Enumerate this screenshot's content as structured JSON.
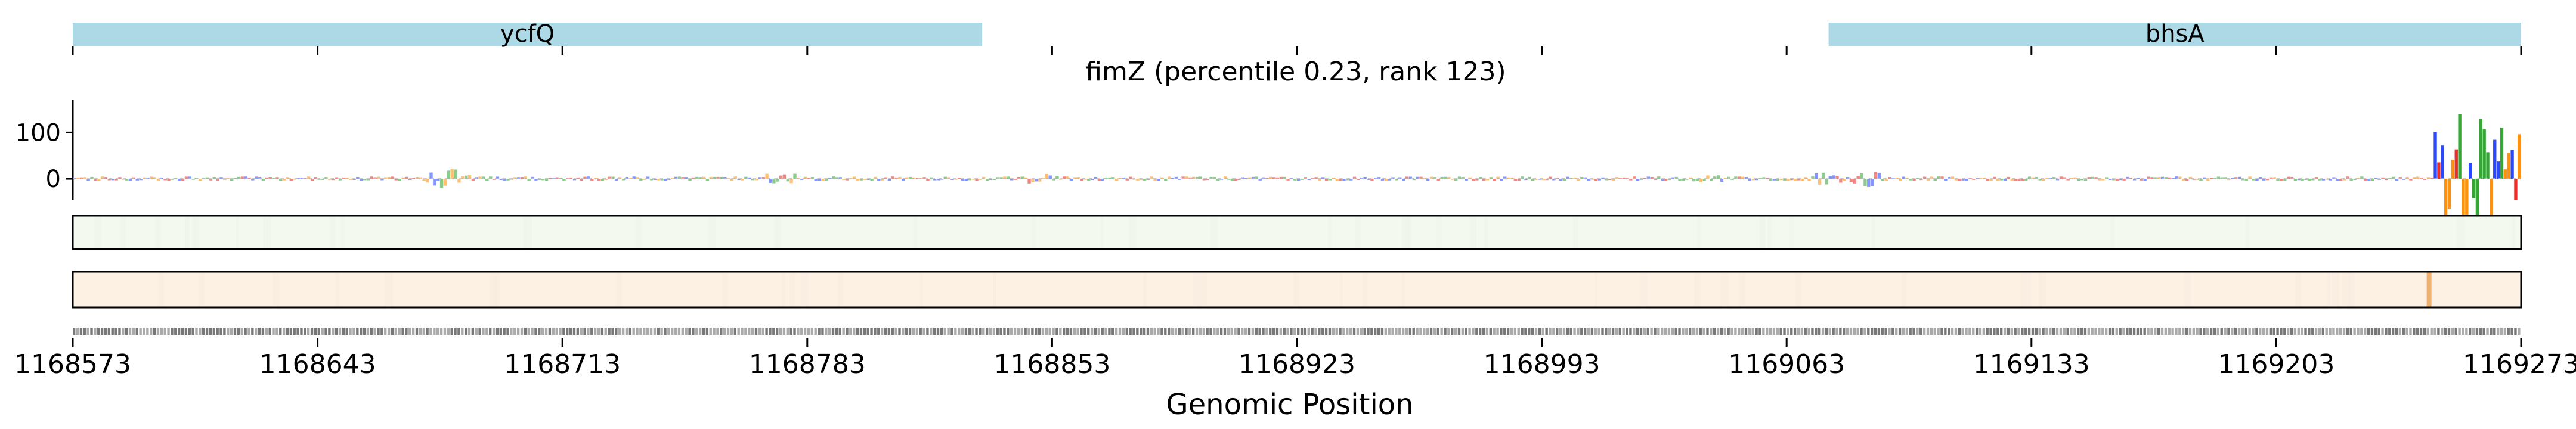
{
  "chart_data": {
    "type": "genome-track",
    "title": "fimZ (percentile 0.23, rank 123)",
    "xlabel": "Genomic Position",
    "xlim": [
      1168573,
      1169273
    ],
    "x_ticks": [
      1168573,
      1168643,
      1168713,
      1168783,
      1168853,
      1168923,
      1168993,
      1169063,
      1169133,
      1169203,
      1169273
    ],
    "genes": [
      {
        "name": "ycfQ",
        "start": 1168573,
        "end": 1168833,
        "color": "#add8e6"
      },
      {
        "name": "bhsA",
        "start": 1169075,
        "end": 1169273,
        "color": "#add8e6"
      }
    ],
    "attribution_track": {
      "y_ticks": [
        0,
        100
      ],
      "ylim": [
        -45,
        170
      ],
      "base_colors": {
        "A": "#2ca02c",
        "C": "#1f3fff",
        "G": "#ff8c00",
        "T": "#e8231d"
      },
      "peak_region": [
        1169248,
        1169273
      ]
    },
    "heatmap_tracks": [
      {
        "color": "#f3f9ee",
        "highlight_positions": []
      },
      {
        "color": "#fdf1e4",
        "highlight_positions": [
          1169246
        ],
        "highlight_color": "#f0b070"
      }
    ]
  }
}
